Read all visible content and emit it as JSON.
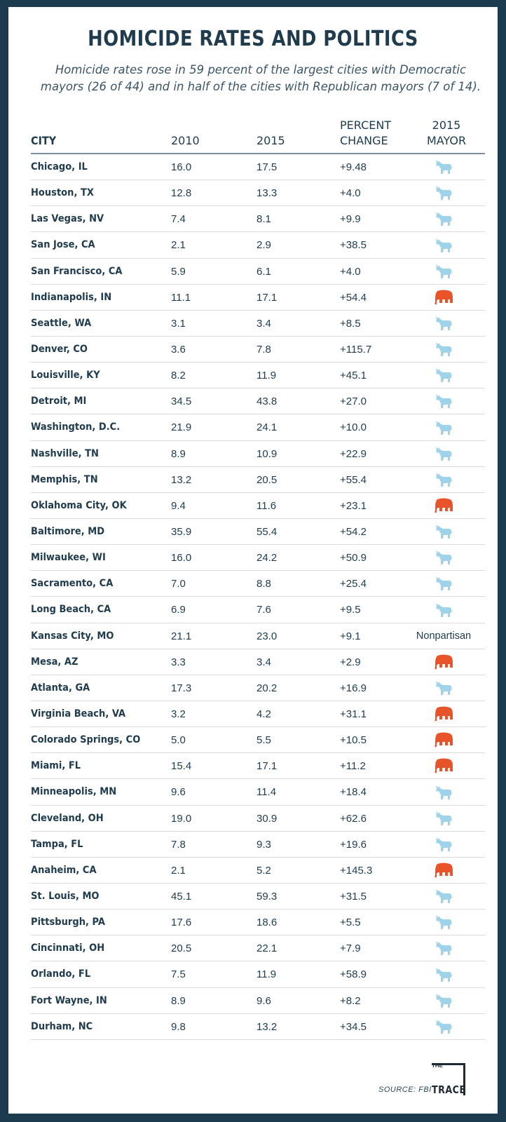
{
  "title": "HOMICIDE RATES AND POLITICS",
  "subtitle": "Homicide rates rose in 59 percent of the largest cities with Democratic mayors (26 of 44) and in half of the cities with Republican mayors (7 of 14).",
  "source": "SOURCE: FBI",
  "logo": {
    "small": "THE",
    "big": "TRACE"
  },
  "colors": {
    "democrat": "#9fd3ea",
    "republican": "#e8542a",
    "text": "#1f3b4d",
    "background": "#1c3a4e"
  },
  "icons": {
    "democrat": "donkey-icon",
    "republican": "elephant-icon"
  },
  "chart_data": {
    "type": "table",
    "title": "HOMICIDE RATES AND POLITICS",
    "columns": [
      "CITY",
      "2010",
      "2015",
      "PERCENT CHANGE",
      "2015 MAYOR"
    ],
    "header": {
      "city": "CITY",
      "y2010": "2010",
      "y2015": "2015",
      "pct_line1": "PERCENT",
      "pct_line2": "CHANGE",
      "mayor_line1": "2015",
      "mayor_line2": "MAYOR"
    },
    "rows": [
      {
        "city": "Chicago, IL",
        "v2010": "16.0",
        "v2015": "17.5",
        "pct": "+9.48",
        "mayor": "D"
      },
      {
        "city": "Houston, TX",
        "v2010": "12.8",
        "v2015": "13.3",
        "pct": "+4.0",
        "mayor": "D"
      },
      {
        "city": "Las Vegas, NV",
        "v2010": "7.4",
        "v2015": "8.1",
        "pct": "+9.9",
        "mayor": "D"
      },
      {
        "city": "San Jose, CA",
        "v2010": "2.1",
        "v2015": "2.9",
        "pct": "+38.5",
        "mayor": "D"
      },
      {
        "city": "San Francisco, CA",
        "v2010": "5.9",
        "v2015": "6.1",
        "pct": "+4.0",
        "mayor": "D"
      },
      {
        "city": "Indianapolis, IN",
        "v2010": "11.1",
        "v2015": "17.1",
        "pct": "+54.4",
        "mayor": "R"
      },
      {
        "city": "Seattle, WA",
        "v2010": "3.1",
        "v2015": "3.4",
        "pct": "+8.5",
        "mayor": "D"
      },
      {
        "city": "Denver, CO",
        "v2010": "3.6",
        "v2015": "7.8",
        "pct": "+115.7",
        "mayor": "D"
      },
      {
        "city": "Louisville, KY",
        "v2010": "8.2",
        "v2015": "11.9",
        "pct": "+45.1",
        "mayor": "D"
      },
      {
        "city": "Detroit, MI",
        "v2010": "34.5",
        "v2015": "43.8",
        "pct": "+27.0",
        "mayor": "D"
      },
      {
        "city": "Washington, D.C.",
        "v2010": "21.9",
        "v2015": "24.1",
        "pct": "+10.0",
        "mayor": "D"
      },
      {
        "city": "Nashville, TN",
        "v2010": "8.9",
        "v2015": "10.9",
        "pct": "+22.9",
        "mayor": "D"
      },
      {
        "city": "Memphis, TN",
        "v2010": "13.2",
        "v2015": "20.5",
        "pct": "+55.4",
        "mayor": "D"
      },
      {
        "city": "Oklahoma City, OK",
        "v2010": "9.4",
        "v2015": "11.6",
        "pct": "+23.1",
        "mayor": "R"
      },
      {
        "city": "Baltimore, MD",
        "v2010": "35.9",
        "v2015": "55.4",
        "pct": "+54.2",
        "mayor": "D"
      },
      {
        "city": "Milwaukee, WI",
        "v2010": "16.0",
        "v2015": "24.2",
        "pct": "+50.9",
        "mayor": "D"
      },
      {
        "city": "Sacramento, CA",
        "v2010": "7.0",
        "v2015": "8.8",
        "pct": "+25.4",
        "mayor": "D"
      },
      {
        "city": "Long Beach, CA",
        "v2010": "6.9",
        "v2015": "7.6",
        "pct": "+9.5",
        "mayor": "D"
      },
      {
        "city": "Kansas City, MO",
        "v2010": "21.1",
        "v2015": "23.0",
        "pct": "+9.1",
        "mayor": "N",
        "mayor_text": "Nonpartisan"
      },
      {
        "city": "Mesa, AZ",
        "v2010": "3.3",
        "v2015": "3.4",
        "pct": "+2.9",
        "mayor": "R"
      },
      {
        "city": "Atlanta, GA",
        "v2010": "17.3",
        "v2015": "20.2",
        "pct": "+16.9",
        "mayor": "D"
      },
      {
        "city": "Virginia Beach, VA",
        "v2010": "3.2",
        "v2015": "4.2",
        "pct": "+31.1",
        "mayor": "R"
      },
      {
        "city": "Colorado Springs, CO",
        "v2010": "5.0",
        "v2015": "5.5",
        "pct": "+10.5",
        "mayor": "R"
      },
      {
        "city": "Miami, FL",
        "v2010": "15.4",
        "v2015": "17.1",
        "pct": "+11.2",
        "mayor": "R"
      },
      {
        "city": "Minneapolis, MN",
        "v2010": "9.6",
        "v2015": "11.4",
        "pct": "+18.4",
        "mayor": "D"
      },
      {
        "city": "Cleveland, OH",
        "v2010": "19.0",
        "v2015": "30.9",
        "pct": "+62.6",
        "mayor": "D"
      },
      {
        "city": "Tampa, FL",
        "v2010": "7.8",
        "v2015": "9.3",
        "pct": "+19.6",
        "mayor": "D"
      },
      {
        "city": "Anaheim, CA",
        "v2010": "2.1",
        "v2015": "5.2",
        "pct": "+145.3",
        "mayor": "R"
      },
      {
        "city": "St. Louis, MO",
        "v2010": "45.1",
        "v2015": "59.3",
        "pct": "+31.5",
        "mayor": "D"
      },
      {
        "city": "Pittsburgh, PA",
        "v2010": "17.6",
        "v2015": "18.6",
        "pct": "+5.5",
        "mayor": "D"
      },
      {
        "city": "Cincinnati, OH",
        "v2010": "20.5",
        "v2015": "22.1",
        "pct": "+7.9",
        "mayor": "D"
      },
      {
        "city": "Orlando, FL",
        "v2010": "7.5",
        "v2015": "11.9",
        "pct": "+58.9",
        "mayor": "D"
      },
      {
        "city": "Fort Wayne, IN",
        "v2010": "8.9",
        "v2015": "9.6",
        "pct": "+8.2",
        "mayor": "D"
      },
      {
        "city": "Durham, NC",
        "v2010": "9.8",
        "v2015": "13.2",
        "pct": "+34.5",
        "mayor": "D"
      }
    ]
  }
}
